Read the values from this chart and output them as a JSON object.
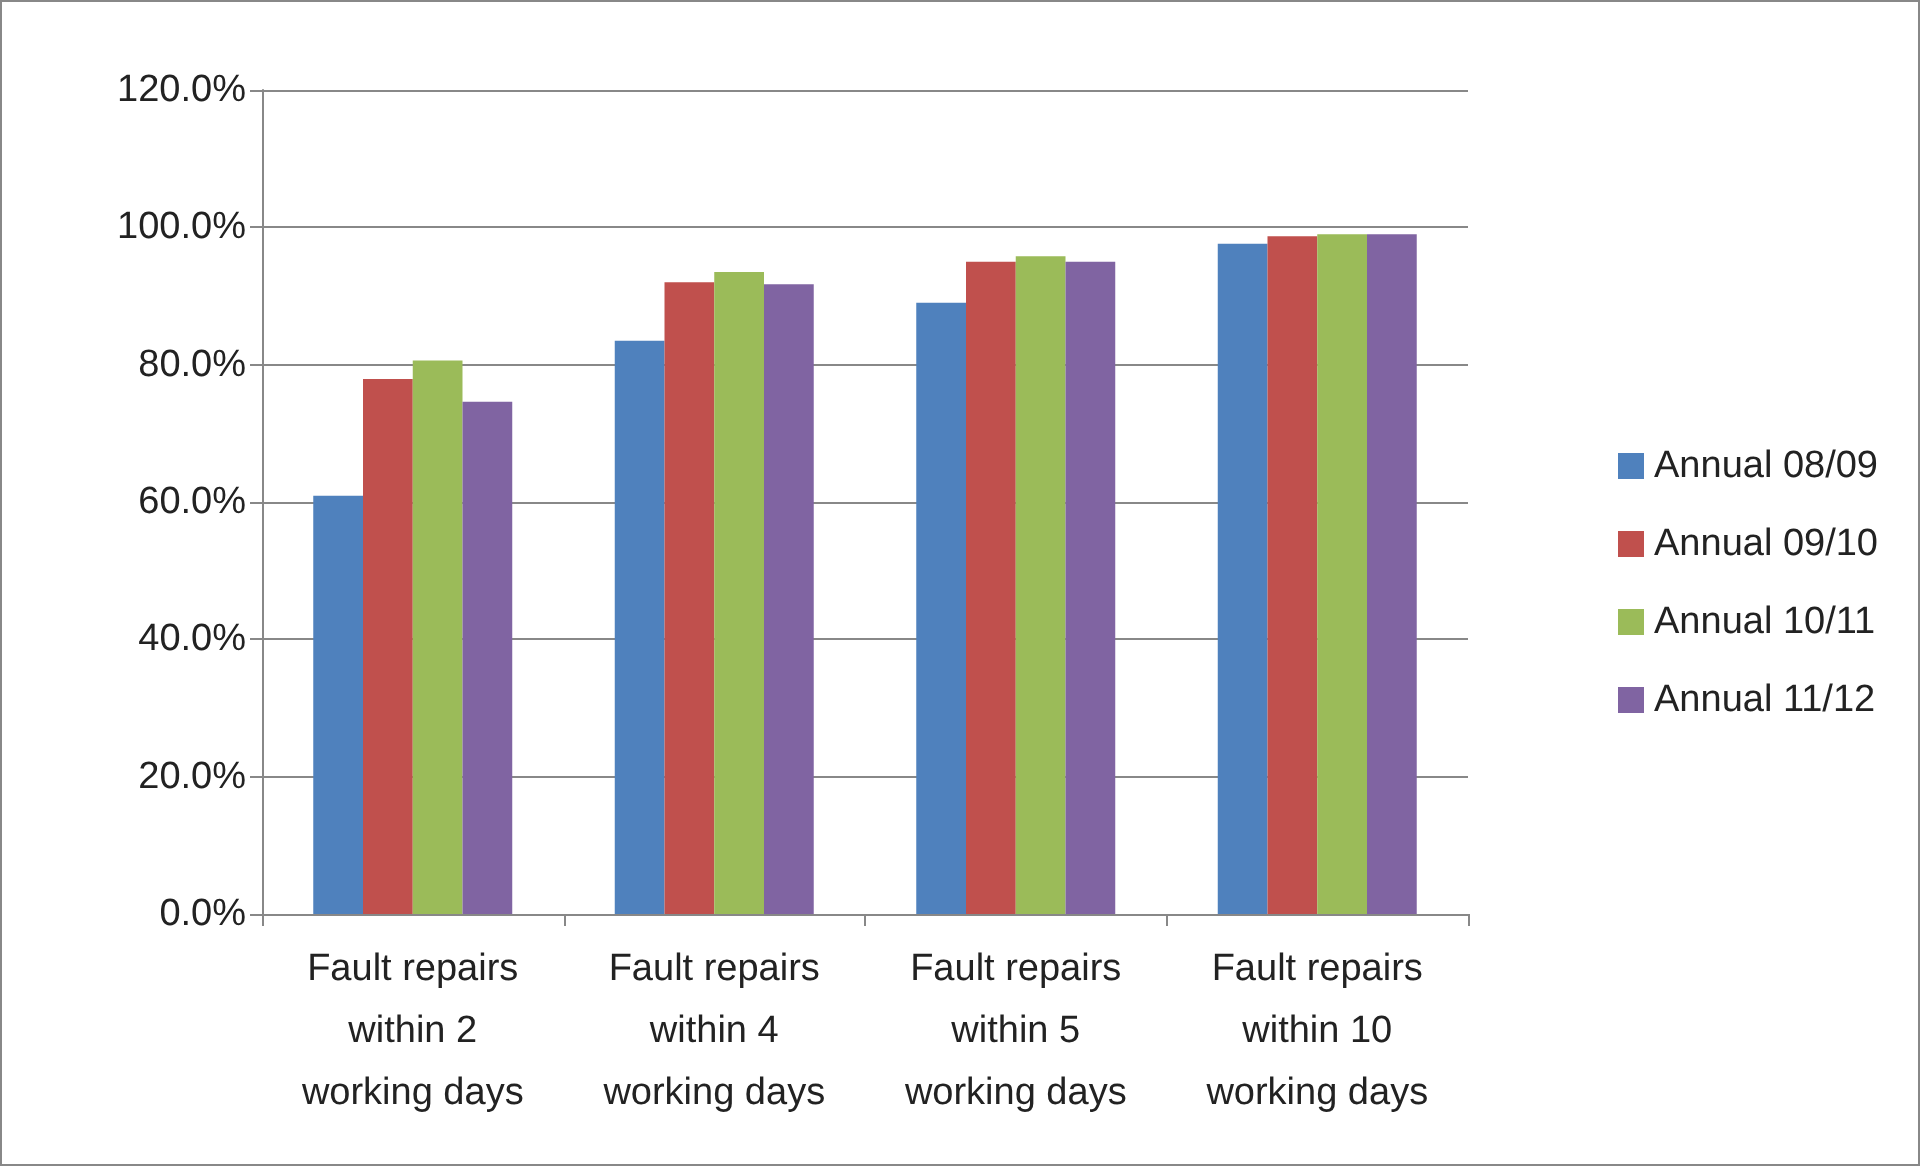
{
  "chart_data": {
    "type": "bar",
    "categories": [
      "Fault repairs\nwithin 2\nworking days",
      "Fault repairs\nwithin 4\nworking days",
      "Fault repairs\nwithin 5\nworking days",
      "Fault repairs\nwithin 10\nworking days"
    ],
    "series": [
      {
        "name": "Annual 08/09",
        "color": "#4f81bd",
        "values": [
          60.9,
          83.5,
          89.0,
          97.6
        ]
      },
      {
        "name": "Annual 09/10",
        "color": "#c0504d",
        "values": [
          77.9,
          92.0,
          95.0,
          98.7
        ]
      },
      {
        "name": "Annual 10/11",
        "color": "#9bbb59",
        "values": [
          80.6,
          93.5,
          95.8,
          99.0
        ]
      },
      {
        "name": "Annual 11/12",
        "color": "#8064a2",
        "values": [
          74.6,
          91.7,
          95.0,
          99.0
        ]
      }
    ],
    "ylim": [
      0,
      120
    ],
    "yticks": [
      {
        "value": 0,
        "label": "0.0%"
      },
      {
        "value": 20,
        "label": "20.0%"
      },
      {
        "value": 40,
        "label": "40.0%"
      },
      {
        "value": 60,
        "label": "60.0%"
      },
      {
        "value": 80,
        "label": "80.0%"
      },
      {
        "value": 100,
        "label": "100.0%"
      },
      {
        "value": 120,
        "label": "120.0%"
      }
    ],
    "grid": "y",
    "legend": "right"
  }
}
